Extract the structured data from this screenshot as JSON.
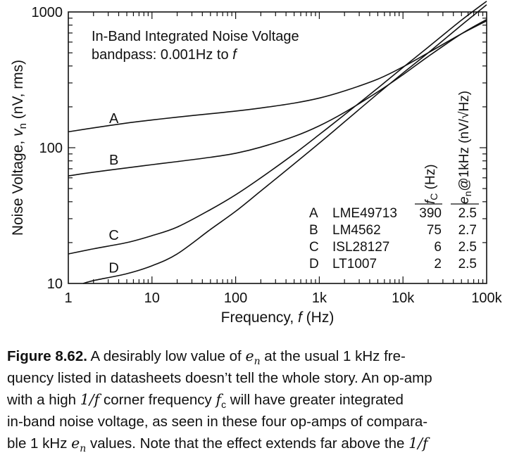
{
  "chart_data": {
    "type": "line",
    "title": "In-Band Integrated Noise Voltage",
    "subtitle_prefix": "bandpass: 0.001Hz to ",
    "subtitle_var": "f",
    "xlabel_prefix": "Frequency, ",
    "xlabel_var": "f",
    "xlabel_suffix": " (Hz)",
    "ylabel_prefix": "Noise Voltage, ",
    "ylabel_var": "v",
    "ylabel_sub": "n",
    "ylabel_suffix": "  (nV, rms)",
    "x_scale": "log",
    "y_scale": "log",
    "xlim": [
      1,
      100000
    ],
    "ylim": [
      10,
      1000
    ],
    "x_ticks": [
      1,
      10,
      100,
      1000,
      10000,
      100000
    ],
    "x_tick_labels": [
      "1",
      "10",
      "100",
      "1k",
      "10k",
      "100k"
    ],
    "y_ticks": [
      10,
      100,
      1000
    ],
    "y_tick_labels": [
      "10",
      "100",
      "1000"
    ],
    "grid": false,
    "series": [
      {
        "name": "A",
        "label_at": [
          3.5,
          152
        ],
        "x": [
          1,
          2,
          5,
          10,
          20,
          50,
          100,
          200,
          500,
          1000,
          2000,
          5000,
          10000,
          20000,
          50000,
          100000
        ],
        "values": [
          131,
          140,
          152,
          160,
          168,
          178,
          186,
          196,
          213,
          232,
          262,
          320,
          394,
          500,
          690,
          860
        ]
      },
      {
        "name": "B",
        "label_at": [
          3.5,
          75
        ],
        "x": [
          1,
          2,
          5,
          10,
          20,
          50,
          100,
          200,
          500,
          1000,
          2000,
          5000,
          10000,
          20000,
          50000,
          100000
        ],
        "values": [
          62,
          66,
          71,
          75,
          79,
          85,
          91,
          101,
          121,
          145,
          182,
          258,
          345,
          470,
          690,
          880
        ]
      },
      {
        "name": "C",
        "label_at": [
          3.5,
          21
        ],
        "x": [
          1,
          2,
          5,
          10,
          20,
          50,
          100,
          200,
          500,
          1000,
          2000,
          5000,
          10000,
          20000,
          50000,
          100000
        ],
        "values": [
          16.5,
          18,
          20,
          22.5,
          26,
          35,
          45,
          60,
          90,
          125,
          175,
          275,
          390,
          550,
          870,
          1200
        ]
      },
      {
        "name": "D",
        "label_at": [
          3.5,
          12
        ],
        "x": [
          1.5,
          2,
          5,
          10,
          20,
          50,
          100,
          200,
          500,
          1000,
          2000,
          5000,
          10000,
          20000,
          50000,
          100000
        ],
        "values": [
          10,
          10.5,
          11.8,
          13.5,
          16.5,
          25,
          34,
          48,
          76,
          108,
          155,
          250,
          355,
          500,
          800,
          1130
        ]
      }
    ],
    "table": {
      "header_fc_var": "f",
      "header_fc_sub": "C",
      "header_fc_suffix": " (Hz)",
      "header_en_var": "e",
      "header_en_sub": "n",
      "header_en_suffix": "@1kHz (nV/√Hz)",
      "rows": [
        {
          "id": "A",
          "part": "LME49713",
          "fc": "390",
          "en": "2.5"
        },
        {
          "id": "B",
          "part": "LM4562",
          "fc": "75",
          "en": "2.7"
        },
        {
          "id": "C",
          "part": "ISL28127",
          "fc": "6",
          "en": "2.5"
        },
        {
          "id": "D",
          "part": "LT1007",
          "fc": "2",
          "en": "2.5"
        }
      ]
    }
  },
  "caption": {
    "label": "Figure 8.62.",
    "l1a": " A desirably low value of ",
    "v_e": "e",
    "v_n": "n",
    "l1b": " at the usual 1 kHz fre-",
    "l2": "quency listed in datasheets doesn’t tell the whole story. An op-amp",
    "l3a": "with a high ",
    "v_1f": "1/f",
    "l3b": " corner frequency ",
    "v_f": "f",
    "v_c": "c",
    "l3c": " will have greater integrated",
    "l4": "in-band noise voltage, as seen in these four op-amps of compara-",
    "l5a": "ble 1 kHz ",
    "l5b": " values. Note that the effect extends far above the "
  }
}
